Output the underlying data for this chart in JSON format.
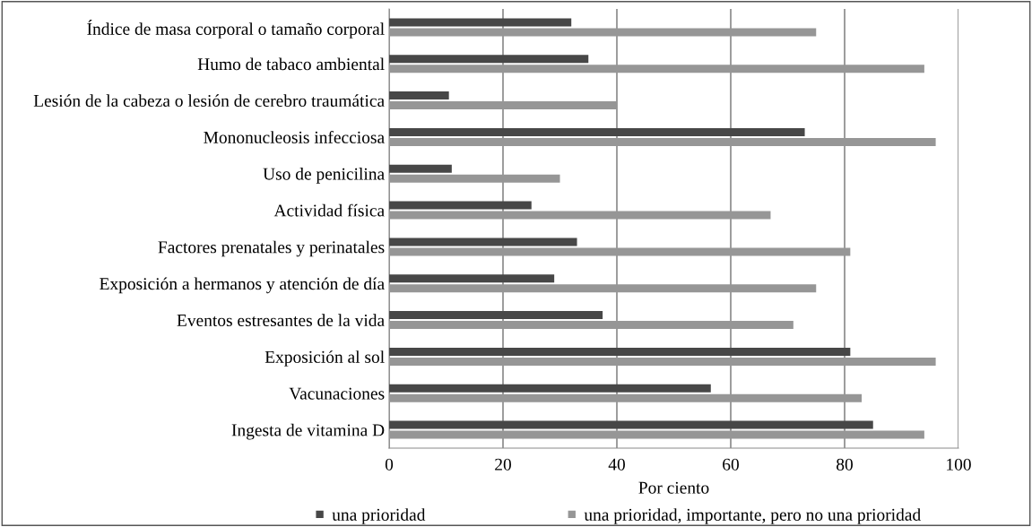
{
  "chart_data": {
    "type": "bar",
    "orientation": "horizontal",
    "xlabel": "Por ciento",
    "categories": [
      "Índice de masa corporal o tamaño corporal",
      "Humo de tabaco ambiental",
      "Lesión de la cabeza o lesión de cerebro traumática",
      "Mononucleosis infecciosa",
      "Uso de penicilina",
      "Actividad física",
      "Factores prenatales y perinatales",
      "Exposición a hermanos y atención de día",
      "Eventos estresantes de la vida",
      "Exposición al sol",
      "Vacunaciones",
      "Ingesta de vitamina D"
    ],
    "series": [
      {
        "name": "una prioridad",
        "color": "#474747",
        "values": [
          32,
          35,
          10.5,
          73,
          11,
          25,
          33,
          29,
          37.5,
          81,
          56.5,
          85
        ]
      },
      {
        "name": "una prioridad, importante, pero no una prioridad",
        "color": "#969696",
        "values": [
          75,
          94,
          40,
          96,
          30,
          67,
          81,
          75,
          71,
          96,
          83,
          94
        ]
      }
    ],
    "xlim": [
      0,
      100
    ],
    "xticks": [
      0,
      20,
      40,
      60,
      80,
      100
    ],
    "grid": "x",
    "legend": "bottom"
  }
}
